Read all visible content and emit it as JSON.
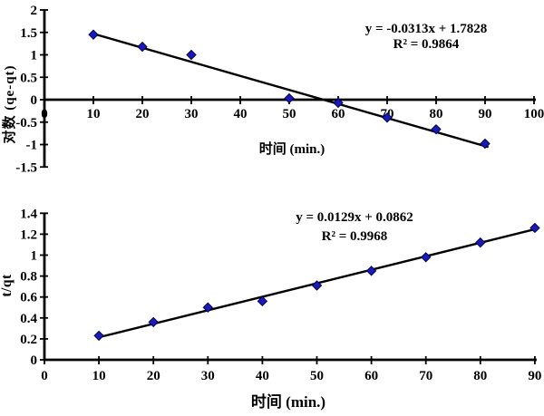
{
  "figure": {
    "background": "#ffffff",
    "axis_color": "#000000",
    "trendline_color": "#000000",
    "marker_fill": "#1a1ab5",
    "marker_stroke": "#00005e",
    "text_color": "#000000"
  },
  "chart_data": [
    {
      "type": "scatter",
      "name": "pseudo-first-order-plot",
      "title": "",
      "xlabel": "时间 (min.)",
      "ylabel": "对数 (qe-qt)",
      "x": [
        10,
        20,
        30,
        50,
        60,
        70,
        80,
        90
      ],
      "y": [
        1.45,
        1.18,
        1.0,
        0.03,
        -0.07,
        -0.4,
        -0.66,
        -0.98
      ],
      "xlim": [
        0,
        100
      ],
      "ylim": [
        -1.5,
        2
      ],
      "xticks": [
        0,
        10,
        20,
        30,
        40,
        50,
        60,
        70,
        80,
        90,
        100
      ],
      "yticks": [
        2,
        1.5,
        1,
        0.5,
        0,
        -0.5,
        -1,
        -1.5
      ],
      "grid": false,
      "legend": null,
      "trendline": {
        "slope": -0.0313,
        "intercept": 1.7828,
        "x_start": 10,
        "x_end": 90.5
      },
      "equation": "y = -0.0313x + 1.7828",
      "r_squared": "R² = 0.9864"
    },
    {
      "type": "scatter",
      "name": "pseudo-second-order-plot",
      "title": "",
      "xlabel": "时间 (min.)",
      "ylabel": "t/qt",
      "x": [
        10,
        20,
        30,
        40,
        50,
        60,
        70,
        80,
        90
      ],
      "y": [
        0.23,
        0.36,
        0.5,
        0.56,
        0.71,
        0.85,
        0.98,
        1.12,
        1.26
      ],
      "xlim": [
        0,
        90
      ],
      "ylim": [
        0,
        1.4
      ],
      "xticks": [
        0,
        10,
        20,
        30,
        40,
        50,
        60,
        70,
        80,
        90
      ],
      "yticks": [
        0,
        0.2,
        0.4,
        0.6,
        0.8,
        1,
        1.2,
        1.4
      ],
      "grid": false,
      "legend": null,
      "trendline": {
        "slope": 0.0129,
        "intercept": 0.0862,
        "x_start": 10,
        "x_end": 90
      },
      "equation": "y = 0.0129x + 0.0862",
      "r_squared": "R² = 0.9968"
    }
  ]
}
